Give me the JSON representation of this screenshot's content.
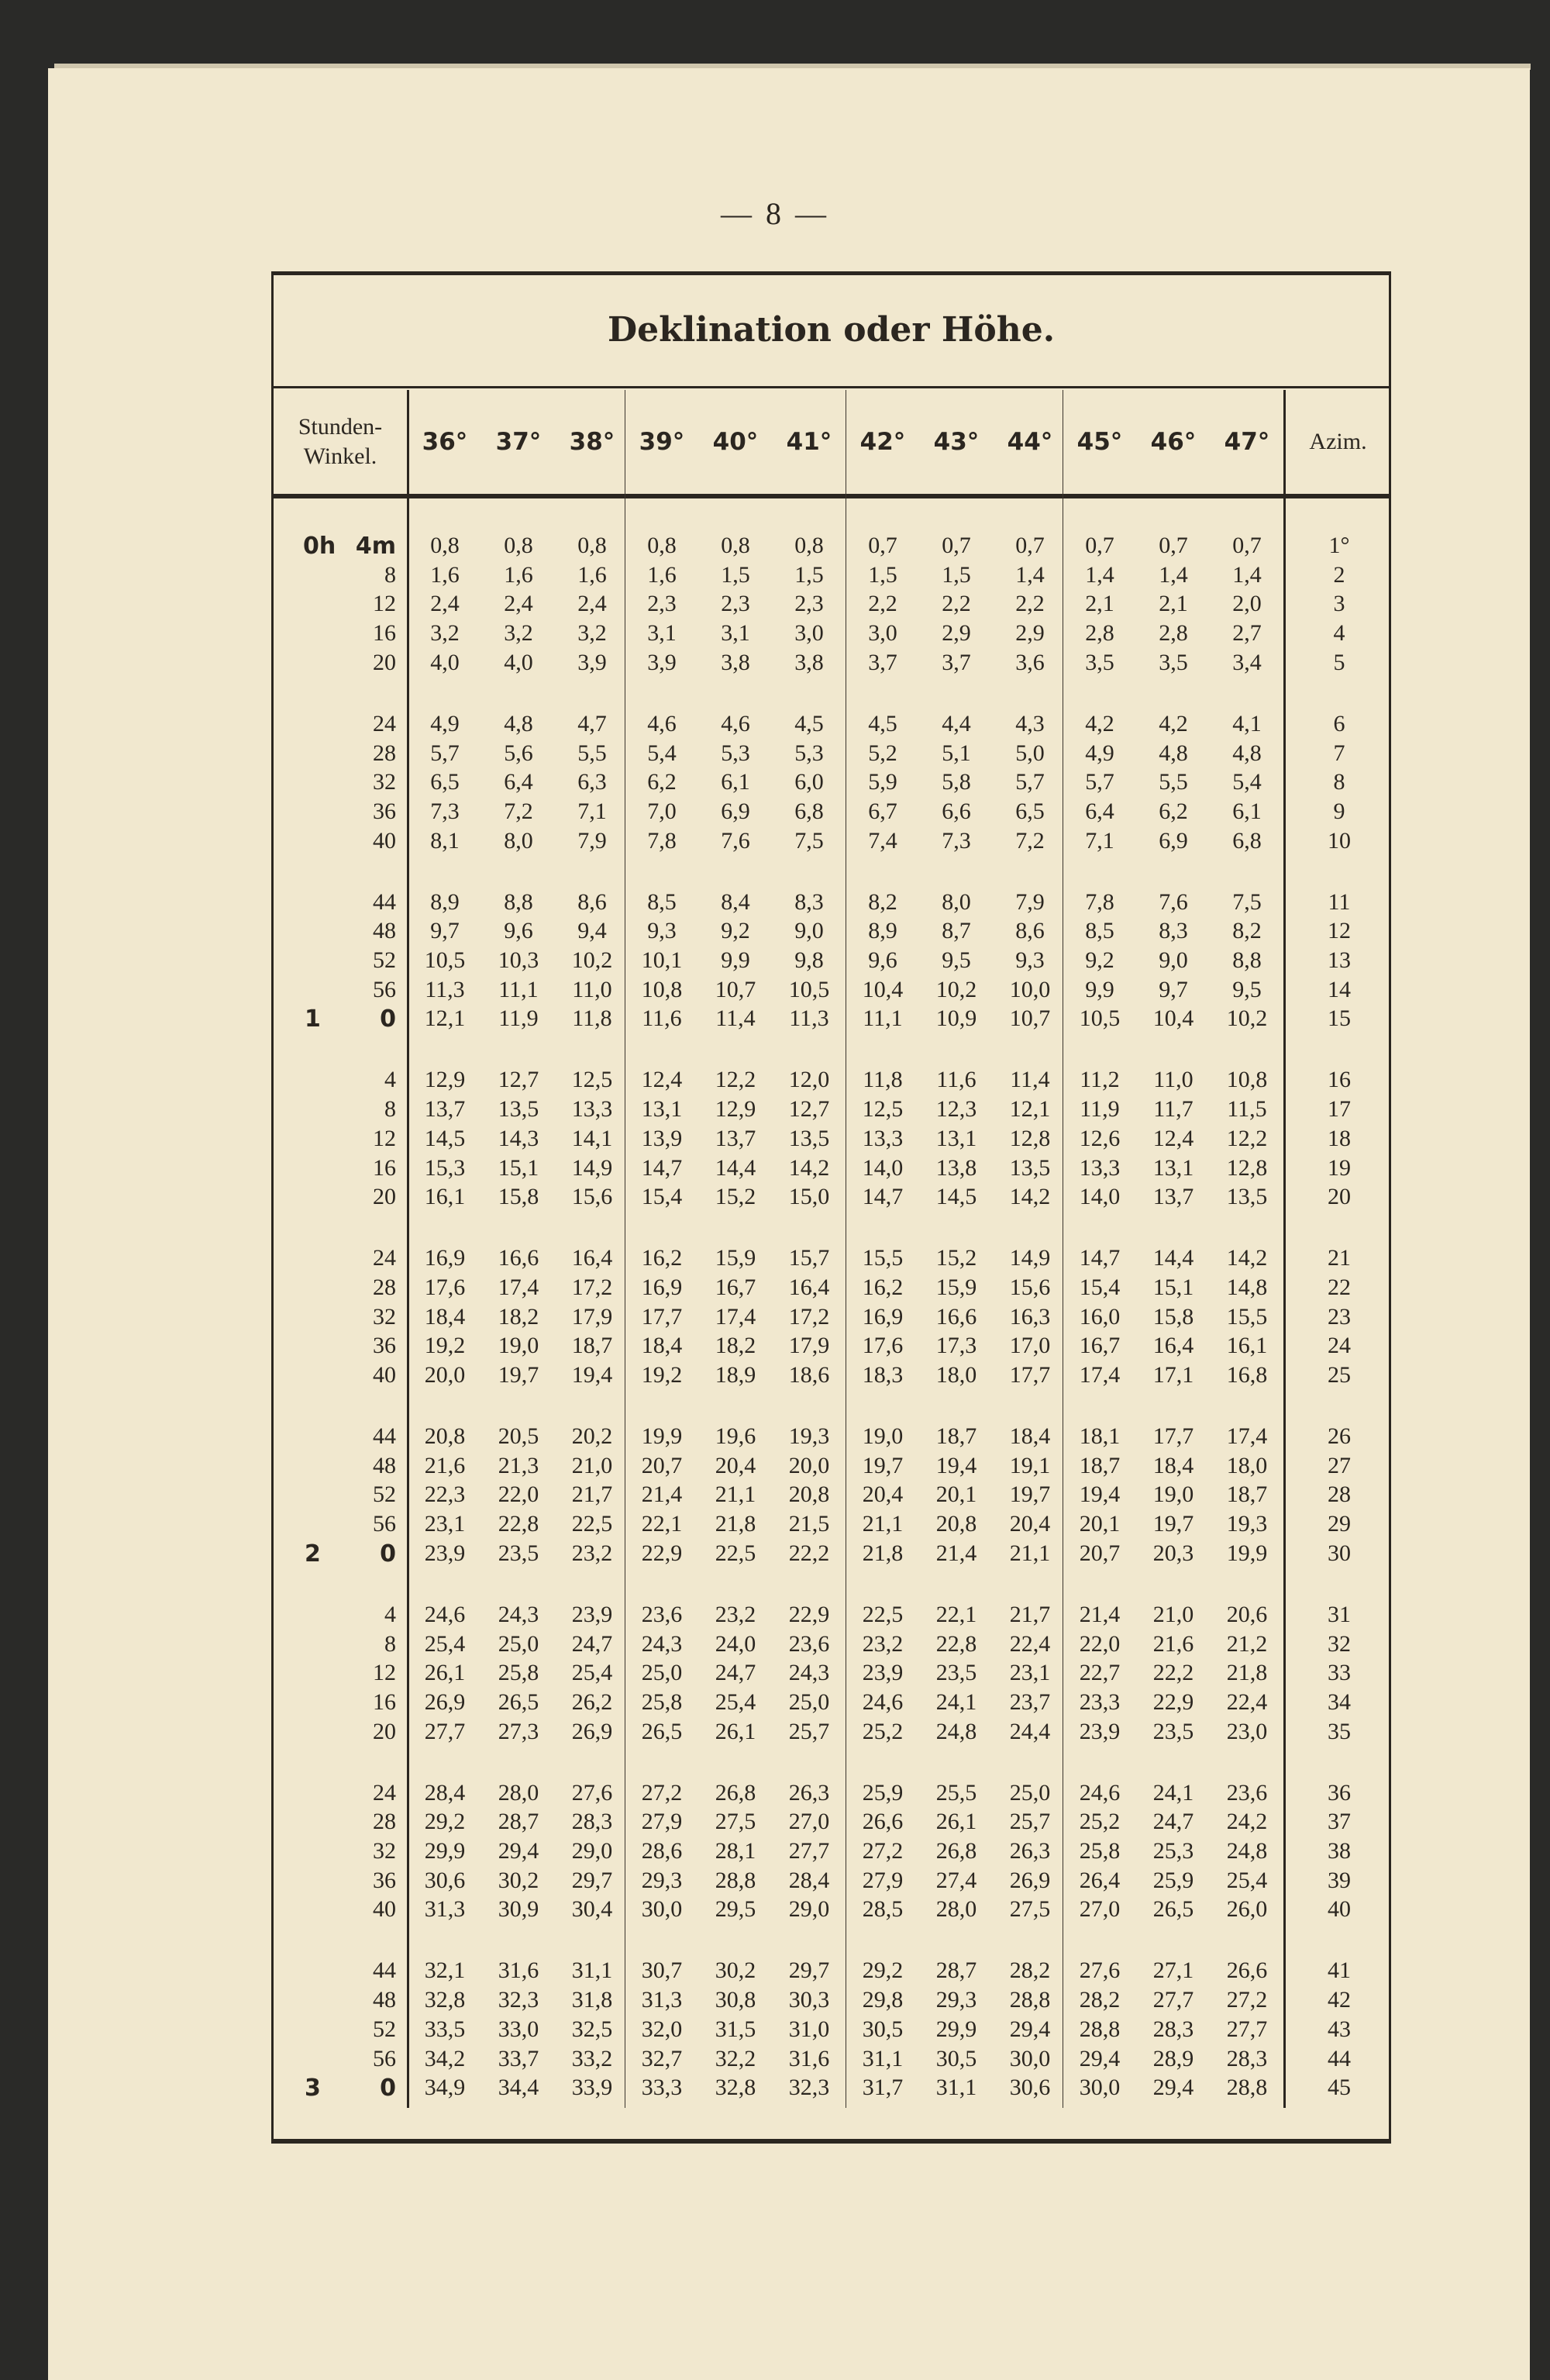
{
  "page_number": "— 8 —",
  "title": "Deklination oder Höhe.",
  "header": {
    "stunden_line1": "Stunden-",
    "stunden_line2": "Winkel.",
    "declinations": [
      "36°",
      "37°",
      "38°",
      "39°",
      "40°",
      "41°",
      "42°",
      "43°",
      "44°",
      "45°",
      "46°",
      "47°"
    ],
    "azim": "Azim."
  },
  "rows": [
    {
      "hour": "0h",
      "min": "4m",
      "v": [
        "0,8",
        "0,8",
        "0,8",
        "0,8",
        "0,8",
        "0,8",
        "0,7",
        "0,7",
        "0,7",
        "0,7",
        "0,7",
        "0,7"
      ],
      "azim": "1°"
    },
    {
      "hour": "",
      "min": "8",
      "v": [
        "1,6",
        "1,6",
        "1,6",
        "1,6",
        "1,5",
        "1,5",
        "1,5",
        "1,5",
        "1,4",
        "1,4",
        "1,4",
        "1,4"
      ],
      "azim": "2"
    },
    {
      "hour": "",
      "min": "12",
      "v": [
        "2,4",
        "2,4",
        "2,4",
        "2,3",
        "2,3",
        "2,3",
        "2,2",
        "2,2",
        "2,2",
        "2,1",
        "2,1",
        "2,0"
      ],
      "azim": "3"
    },
    {
      "hour": "",
      "min": "16",
      "v": [
        "3,2",
        "3,2",
        "3,2",
        "3,1",
        "3,1",
        "3,0",
        "3,0",
        "2,9",
        "2,9",
        "2,8",
        "2,8",
        "2,7"
      ],
      "azim": "4"
    },
    {
      "hour": "",
      "min": "20",
      "v": [
        "4,0",
        "4,0",
        "3,9",
        "3,9",
        "3,8",
        "3,8",
        "3,7",
        "3,7",
        "3,6",
        "3,5",
        "3,5",
        "3,4"
      ],
      "azim": "5"
    },
    {
      "hour": "",
      "min": "24",
      "v": [
        "4,9",
        "4,8",
        "4,7",
        "4,6",
        "4,6",
        "4,5",
        "4,5",
        "4,4",
        "4,3",
        "4,2",
        "4,2",
        "4,1"
      ],
      "azim": "6"
    },
    {
      "hour": "",
      "min": "28",
      "v": [
        "5,7",
        "5,6",
        "5,5",
        "5,4",
        "5,3",
        "5,3",
        "5,2",
        "5,1",
        "5,0",
        "4,9",
        "4,8",
        "4,8"
      ],
      "azim": "7"
    },
    {
      "hour": "",
      "min": "32",
      "v": [
        "6,5",
        "6,4",
        "6,3",
        "6,2",
        "6,1",
        "6,0",
        "5,9",
        "5,8",
        "5,7",
        "5,7",
        "5,5",
        "5,4"
      ],
      "azim": "8"
    },
    {
      "hour": "",
      "min": "36",
      "v": [
        "7,3",
        "7,2",
        "7,1",
        "7,0",
        "6,9",
        "6,8",
        "6,7",
        "6,6",
        "6,5",
        "6,4",
        "6,2",
        "6,1"
      ],
      "azim": "9"
    },
    {
      "hour": "",
      "min": "40",
      "v": [
        "8,1",
        "8,0",
        "7,9",
        "7,8",
        "7,6",
        "7,5",
        "7,4",
        "7,3",
        "7,2",
        "7,1",
        "6,9",
        "6,8"
      ],
      "azim": "10"
    },
    {
      "hour": "",
      "min": "44",
      "v": [
        "8,9",
        "8,8",
        "8,6",
        "8,5",
        "8,4",
        "8,3",
        "8,2",
        "8,0",
        "7,9",
        "7,8",
        "7,6",
        "7,5"
      ],
      "azim": "11"
    },
    {
      "hour": "",
      "min": "48",
      "v": [
        "9,7",
        "9,6",
        "9,4",
        "9,3",
        "9,2",
        "9,0",
        "8,9",
        "8,7",
        "8,6",
        "8,5",
        "8,3",
        "8,2"
      ],
      "azim": "12"
    },
    {
      "hour": "",
      "min": "52",
      "v": [
        "10,5",
        "10,3",
        "10,2",
        "10,1",
        "9,9",
        "9,8",
        "9,6",
        "9,5",
        "9,3",
        "9,2",
        "9,0",
        "8,8"
      ],
      "azim": "13"
    },
    {
      "hour": "",
      "min": "56",
      "v": [
        "11,3",
        "11,1",
        "11,0",
        "10,8",
        "10,7",
        "10,5",
        "10,4",
        "10,2",
        "10,0",
        "9,9",
        "9,7",
        "9,5"
      ],
      "azim": "14"
    },
    {
      "hour": "1",
      "min": "0",
      "v": [
        "12,1",
        "11,9",
        "11,8",
        "11,6",
        "11,4",
        "11,3",
        "11,1",
        "10,9",
        "10,7",
        "10,5",
        "10,4",
        "10,2"
      ],
      "azim": "15"
    },
    {
      "hour": "",
      "min": "4",
      "v": [
        "12,9",
        "12,7",
        "12,5",
        "12,4",
        "12,2",
        "12,0",
        "11,8",
        "11,6",
        "11,4",
        "11,2",
        "11,0",
        "10,8"
      ],
      "azim": "16"
    },
    {
      "hour": "",
      "min": "8",
      "v": [
        "13,7",
        "13,5",
        "13,3",
        "13,1",
        "12,9",
        "12,7",
        "12,5",
        "12,3",
        "12,1",
        "11,9",
        "11,7",
        "11,5"
      ],
      "azim": "17"
    },
    {
      "hour": "",
      "min": "12",
      "v": [
        "14,5",
        "14,3",
        "14,1",
        "13,9",
        "13,7",
        "13,5",
        "13,3",
        "13,1",
        "12,8",
        "12,6",
        "12,4",
        "12,2"
      ],
      "azim": "18"
    },
    {
      "hour": "",
      "min": "16",
      "v": [
        "15,3",
        "15,1",
        "14,9",
        "14,7",
        "14,4",
        "14,2",
        "14,0",
        "13,8",
        "13,5",
        "13,3",
        "13,1",
        "12,8"
      ],
      "azim": "19"
    },
    {
      "hour": "",
      "min": "20",
      "v": [
        "16,1",
        "15,8",
        "15,6",
        "15,4",
        "15,2",
        "15,0",
        "14,7",
        "14,5",
        "14,2",
        "14,0",
        "13,7",
        "13,5"
      ],
      "azim": "20"
    },
    {
      "hour": "",
      "min": "24",
      "v": [
        "16,9",
        "16,6",
        "16,4",
        "16,2",
        "15,9",
        "15,7",
        "15,5",
        "15,2",
        "14,9",
        "14,7",
        "14,4",
        "14,2"
      ],
      "azim": "21"
    },
    {
      "hour": "",
      "min": "28",
      "v": [
        "17,6",
        "17,4",
        "17,2",
        "16,9",
        "16,7",
        "16,4",
        "16,2",
        "15,9",
        "15,6",
        "15,4",
        "15,1",
        "14,8"
      ],
      "azim": "22"
    },
    {
      "hour": "",
      "min": "32",
      "v": [
        "18,4",
        "18,2",
        "17,9",
        "17,7",
        "17,4",
        "17,2",
        "16,9",
        "16,6",
        "16,3",
        "16,0",
        "15,8",
        "15,5"
      ],
      "azim": "23"
    },
    {
      "hour": "",
      "min": "36",
      "v": [
        "19,2",
        "19,0",
        "18,7",
        "18,4",
        "18,2",
        "17,9",
        "17,6",
        "17,3",
        "17,0",
        "16,7",
        "16,4",
        "16,1"
      ],
      "azim": "24"
    },
    {
      "hour": "",
      "min": "40",
      "v": [
        "20,0",
        "19,7",
        "19,4",
        "19,2",
        "18,9",
        "18,6",
        "18,3",
        "18,0",
        "17,7",
        "17,4",
        "17,1",
        "16,8"
      ],
      "azim": "25"
    },
    {
      "hour": "",
      "min": "44",
      "v": [
        "20,8",
        "20,5",
        "20,2",
        "19,9",
        "19,6",
        "19,3",
        "19,0",
        "18,7",
        "18,4",
        "18,1",
        "17,7",
        "17,4"
      ],
      "azim": "26"
    },
    {
      "hour": "",
      "min": "48",
      "v": [
        "21,6",
        "21,3",
        "21,0",
        "20,7",
        "20,4",
        "20,0",
        "19,7",
        "19,4",
        "19,1",
        "18,7",
        "18,4",
        "18,0"
      ],
      "azim": "27"
    },
    {
      "hour": "",
      "min": "52",
      "v": [
        "22,3",
        "22,0",
        "21,7",
        "21,4",
        "21,1",
        "20,8",
        "20,4",
        "20,1",
        "19,7",
        "19,4",
        "19,0",
        "18,7"
      ],
      "azim": "28"
    },
    {
      "hour": "",
      "min": "56",
      "v": [
        "23,1",
        "22,8",
        "22,5",
        "22,1",
        "21,8",
        "21,5",
        "21,1",
        "20,8",
        "20,4",
        "20,1",
        "19,7",
        "19,3"
      ],
      "azim": "29"
    },
    {
      "hour": "2",
      "min": "0",
      "v": [
        "23,9",
        "23,5",
        "23,2",
        "22,9",
        "22,5",
        "22,2",
        "21,8",
        "21,4",
        "21,1",
        "20,7",
        "20,3",
        "19,9"
      ],
      "azim": "30"
    },
    {
      "hour": "",
      "min": "4",
      "v": [
        "24,6",
        "24,3",
        "23,9",
        "23,6",
        "23,2",
        "22,9",
        "22,5",
        "22,1",
        "21,7",
        "21,4",
        "21,0",
        "20,6"
      ],
      "azim": "31"
    },
    {
      "hour": "",
      "min": "8",
      "v": [
        "25,4",
        "25,0",
        "24,7",
        "24,3",
        "24,0",
        "23,6",
        "23,2",
        "22,8",
        "22,4",
        "22,0",
        "21,6",
        "21,2"
      ],
      "azim": "32"
    },
    {
      "hour": "",
      "min": "12",
      "v": [
        "26,1",
        "25,8",
        "25,4",
        "25,0",
        "24,7",
        "24,3",
        "23,9",
        "23,5",
        "23,1",
        "22,7",
        "22,2",
        "21,8"
      ],
      "azim": "33"
    },
    {
      "hour": "",
      "min": "16",
      "v": [
        "26,9",
        "26,5",
        "26,2",
        "25,8",
        "25,4",
        "25,0",
        "24,6",
        "24,1",
        "23,7",
        "23,3",
        "22,9",
        "22,4"
      ],
      "azim": "34"
    },
    {
      "hour": "",
      "min": "20",
      "v": [
        "27,7",
        "27,3",
        "26,9",
        "26,5",
        "26,1",
        "25,7",
        "25,2",
        "24,8",
        "24,4",
        "23,9",
        "23,5",
        "23,0"
      ],
      "azim": "35"
    },
    {
      "hour": "",
      "min": "24",
      "v": [
        "28,4",
        "28,0",
        "27,6",
        "27,2",
        "26,8",
        "26,3",
        "25,9",
        "25,5",
        "25,0",
        "24,6",
        "24,1",
        "23,6"
      ],
      "azim": "36"
    },
    {
      "hour": "",
      "min": "28",
      "v": [
        "29,2",
        "28,7",
        "28,3",
        "27,9",
        "27,5",
        "27,0",
        "26,6",
        "26,1",
        "25,7",
        "25,2",
        "24,7",
        "24,2"
      ],
      "azim": "37"
    },
    {
      "hour": "",
      "min": "32",
      "v": [
        "29,9",
        "29,4",
        "29,0",
        "28,6",
        "28,1",
        "27,7",
        "27,2",
        "26,8",
        "26,3",
        "25,8",
        "25,3",
        "24,8"
      ],
      "azim": "38"
    },
    {
      "hour": "",
      "min": "36",
      "v": [
        "30,6",
        "30,2",
        "29,7",
        "29,3",
        "28,8",
        "28,4",
        "27,9",
        "27,4",
        "26,9",
        "26,4",
        "25,9",
        "25,4"
      ],
      "azim": "39"
    },
    {
      "hour": "",
      "min": "40",
      "v": [
        "31,3",
        "30,9",
        "30,4",
        "30,0",
        "29,5",
        "29,0",
        "28,5",
        "28,0",
        "27,5",
        "27,0",
        "26,5",
        "26,0"
      ],
      "azim": "40"
    },
    {
      "hour": "",
      "min": "44",
      "v": [
        "32,1",
        "31,6",
        "31,1",
        "30,7",
        "30,2",
        "29,7",
        "29,2",
        "28,7",
        "28,2",
        "27,6",
        "27,1",
        "26,6"
      ],
      "azim": "41"
    },
    {
      "hour": "",
      "min": "48",
      "v": [
        "32,8",
        "32,3",
        "31,8",
        "31,3",
        "30,8",
        "30,3",
        "29,8",
        "29,3",
        "28,8",
        "28,2",
        "27,7",
        "27,2"
      ],
      "azim": "42"
    },
    {
      "hour": "",
      "min": "52",
      "v": [
        "33,5",
        "33,0",
        "32,5",
        "32,0",
        "31,5",
        "31,0",
        "30,5",
        "29,9",
        "29,4",
        "28,8",
        "28,3",
        "27,7"
      ],
      "azim": "43"
    },
    {
      "hour": "",
      "min": "56",
      "v": [
        "34,2",
        "33,7",
        "33,2",
        "32,7",
        "32,2",
        "31,6",
        "31,1",
        "30,5",
        "30,0",
        "29,4",
        "28,9",
        "28,3"
      ],
      "azim": "44"
    },
    {
      "hour": "3",
      "min": "0",
      "v": [
        "34,9",
        "34,4",
        "33,9",
        "33,3",
        "32,8",
        "32,3",
        "31,7",
        "31,1",
        "30,6",
        "30,0",
        "29,4",
        "28,8"
      ],
      "azim": "45"
    }
  ]
}
